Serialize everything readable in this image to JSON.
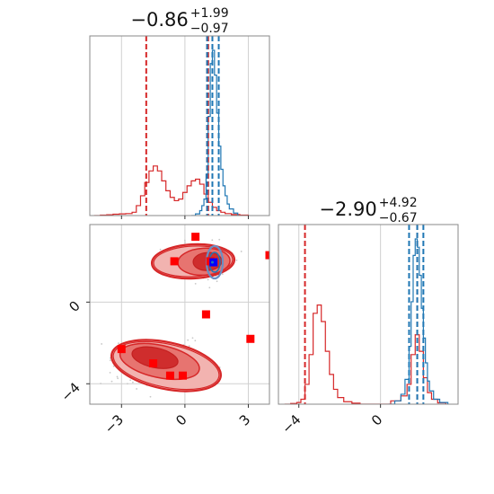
{
  "chart_data": [
    {
      "type": "histogram",
      "panel": "marginal-x",
      "title": {
        "main": "−0.86",
        "sup": "+1.99",
        "sub": "−0.97"
      },
      "xlim": [
        -4.5,
        4.0
      ],
      "x_ticks": [
        -3,
        0,
        3
      ],
      "grid": true,
      "series": [
        {
          "name": "",
          "color": "#d62728",
          "x": [
            -4.3,
            -4.0,
            -3.7,
            -3.4,
            -3.1,
            -2.8,
            -2.5,
            -2.3,
            -2.1,
            -1.9,
            -1.7,
            -1.5,
            -1.3,
            -1.1,
            -0.9,
            -0.7,
            -0.5,
            -0.3,
            -0.1,
            0.1,
            0.3,
            0.5,
            0.7,
            0.9,
            1.1,
            1.3,
            1.5,
            1.7,
            1.9,
            2.2,
            2.6,
            3.0
          ],
          "y": [
            0.0,
            0.003,
            0.005,
            0.008,
            0.01,
            0.012,
            0.02,
            0.06,
            0.12,
            0.2,
            0.27,
            0.3,
            0.27,
            0.21,
            0.15,
            0.11,
            0.09,
            0.1,
            0.14,
            0.18,
            0.21,
            0.22,
            0.19,
            0.13,
            0.08,
            0.05,
            0.03,
            0.02,
            0.012,
            0.006,
            0.003,
            0.0
          ]
        },
        {
          "name": "",
          "color": "#1f77b4",
          "x": [
            0.3,
            0.5,
            0.7,
            0.8,
            0.9,
            1.0,
            1.1,
            1.2,
            1.3,
            1.4,
            1.5,
            1.6,
            1.7,
            1.8,
            1.9,
            2.0,
            2.1,
            2.3,
            2.5
          ],
          "y": [
            0.0,
            0.01,
            0.03,
            0.06,
            0.1,
            0.25,
            0.6,
            0.92,
            1.0,
            0.85,
            0.62,
            0.42,
            0.28,
            0.18,
            0.12,
            0.07,
            0.04,
            0.015,
            0.0
          ]
        }
      ],
      "vlines_red": [
        -1.83,
        1.05,
        1.1
      ],
      "vlines_blue": [
        1.05,
        1.3,
        1.6
      ]
    },
    {
      "type": "contour",
      "panel": "joint",
      "xlim": [
        -4.5,
        4.0
      ],
      "ylim": [
        -5.0,
        3.8
      ],
      "x_ticks": [
        -3,
        0,
        3
      ],
      "y_ticks": [
        0,
        -4
      ],
      "grid": true,
      "red_squares": [
        [
          0.5,
          3.2
        ],
        [
          -0.5,
          2.0
        ],
        [
          1.2,
          2.0
        ],
        [
          4.0,
          2.3
        ],
        [
          1.0,
          -0.6
        ],
        [
          3.1,
          -1.8
        ],
        [
          -3.0,
          -2.3
        ],
        [
          -1.5,
          -3.0
        ],
        [
          -0.7,
          -3.6
        ],
        [
          -0.1,
          -3.6
        ]
      ],
      "blue_squares": [
        [
          1.35,
          1.95
        ]
      ],
      "blue_median": [
        1.3,
        1.95
      ]
    },
    {
      "type": "histogram",
      "panel": "marginal-y",
      "title": {
        "main": "−2.90",
        "sup": "+4.92",
        "sub": "−0.67"
      },
      "xlim": [
        -5.0,
        3.8
      ],
      "x_ticks": [
        -4,
        0
      ],
      "grid": true,
      "series": [
        {
          "name": "",
          "color": "#d62728",
          "x": [
            -4.7,
            -4.4,
            -4.1,
            -3.9,
            -3.7,
            -3.5,
            -3.3,
            -3.1,
            -2.9,
            -2.7,
            -2.5,
            -2.3,
            -2.1,
            -1.8,
            -1.4,
            -1.0,
            0.0,
            0.5,
            1.0,
            1.3,
            1.5,
            1.7,
            1.9,
            2.1,
            2.3,
            2.5,
            2.8,
            3.2
          ],
          "y": [
            0.0,
            0.004,
            0.01,
            0.03,
            0.12,
            0.3,
            0.55,
            0.6,
            0.5,
            0.32,
            0.18,
            0.09,
            0.04,
            0.015,
            0.006,
            0.0,
            0.0,
            0.02,
            0.05,
            0.12,
            0.3,
            0.42,
            0.32,
            0.16,
            0.07,
            0.03,
            0.008,
            0.0
          ]
        },
        {
          "name": "",
          "color": "#1f77b4",
          "x": [
            0.4,
            0.7,
            1.0,
            1.2,
            1.4,
            1.5,
            1.6,
            1.7,
            1.8,
            1.9,
            2.0,
            2.1,
            2.2,
            2.3,
            2.4,
            2.6,
            2.9,
            3.3
          ],
          "y": [
            0.0,
            0.02,
            0.06,
            0.15,
            0.35,
            0.62,
            0.9,
            1.0,
            0.95,
            0.78,
            0.58,
            0.4,
            0.25,
            0.14,
            0.08,
            0.03,
            0.01,
            0.0
          ]
        }
      ],
      "vlines_red": [
        -3.7,
        1.8
      ],
      "vlines_blue": [
        1.4,
        1.8,
        2.1
      ]
    }
  ]
}
